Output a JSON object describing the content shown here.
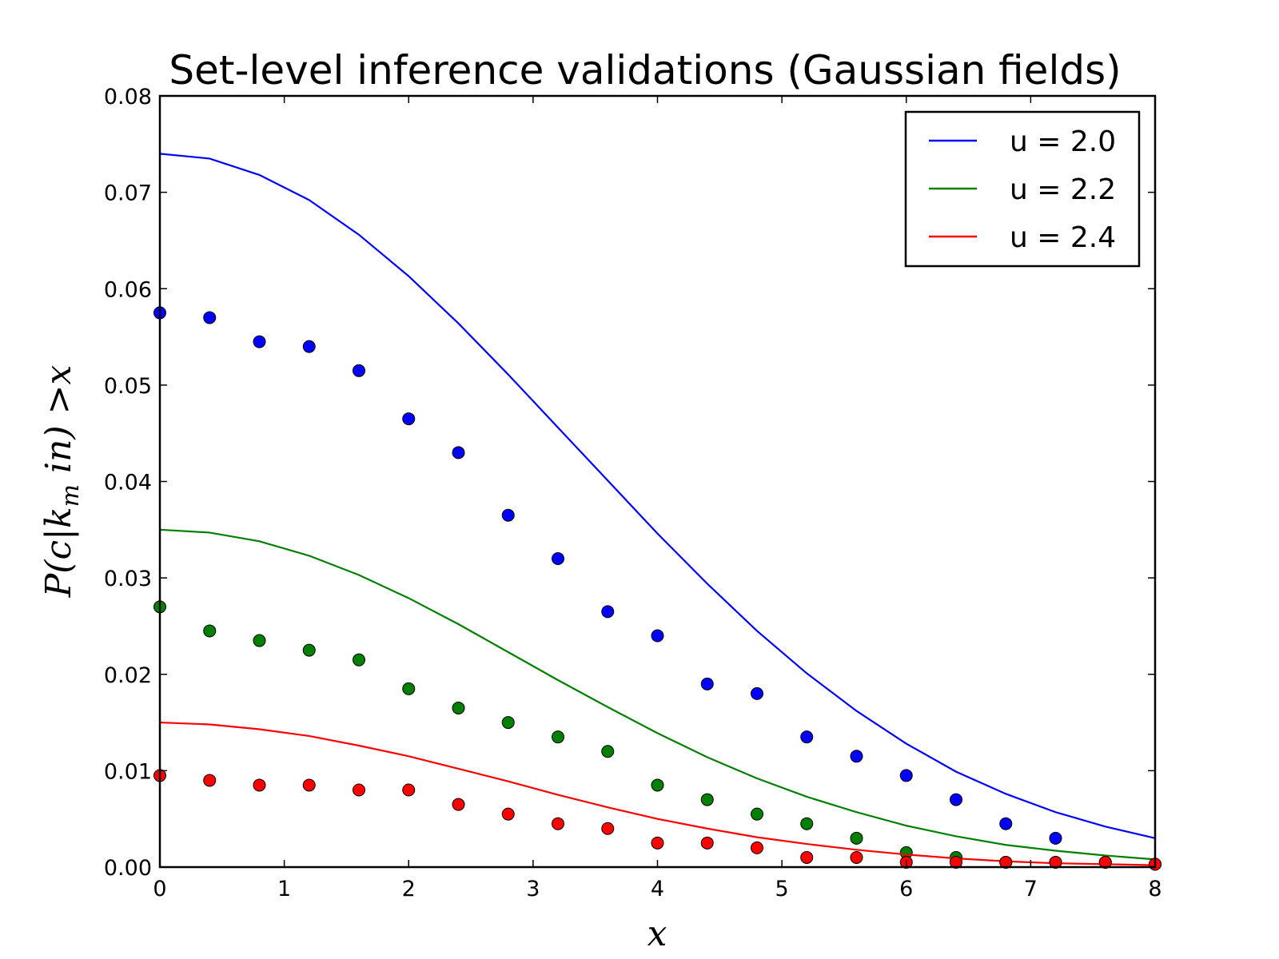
{
  "chart_data": {
    "type": "line",
    "title": "Set-level inference validations (Gaussian fields)",
    "xlabel": "x",
    "ylabel": "P(c|k_m in) >x",
    "xlim": [
      0,
      8
    ],
    "ylim": [
      0,
      0.08
    ],
    "xticks": [
      "0",
      "1",
      "2",
      "3",
      "4",
      "5",
      "6",
      "7",
      "8"
    ],
    "yticks": [
      "0.00",
      "0.01",
      "0.02",
      "0.03",
      "0.04",
      "0.05",
      "0.06",
      "0.07",
      "0.08"
    ],
    "grid": false,
    "legend_position": "top-right",
    "x_line": [
      0,
      0.4,
      0.8,
      1.2,
      1.6,
      2.0,
      2.4,
      2.8,
      3.2,
      3.6,
      4.0,
      4.4,
      4.8,
      5.2,
      5.6,
      6.0,
      6.4,
      6.8,
      7.2,
      7.6,
      8.0
    ],
    "x_points": [
      0,
      0.4,
      0.8,
      1.2,
      1.6,
      2.0,
      2.4,
      2.8,
      3.2,
      3.6,
      4.0,
      4.4,
      4.8,
      5.2,
      5.6,
      6.0,
      6.4,
      6.8,
      7.2,
      7.6,
      8.0
    ],
    "series": [
      {
        "name": "u = 2.0",
        "color": "#0000ff",
        "line": [
          0.074,
          0.0735,
          0.0718,
          0.0692,
          0.0656,
          0.0613,
          0.0564,
          0.0511,
          0.0456,
          0.0401,
          0.0346,
          0.0294,
          0.0245,
          0.0201,
          0.0162,
          0.0128,
          0.0099,
          0.0076,
          0.0057,
          0.0042,
          0.003
        ],
        "points": [
          0.0575,
          0.057,
          0.0545,
          0.054,
          0.0515,
          0.0465,
          0.043,
          0.0365,
          0.032,
          0.0265,
          0.024,
          0.019,
          0.018,
          0.0135,
          0.0115,
          0.0095,
          0.007,
          0.0045,
          0.003,
          null,
          null
        ]
      },
      {
        "name": "u = 2.2",
        "color": "#008000",
        "line": [
          0.035,
          0.0347,
          0.0338,
          0.0323,
          0.0303,
          0.0279,
          0.0252,
          0.0223,
          0.0194,
          0.0166,
          0.0139,
          0.0114,
          0.0092,
          0.0073,
          0.0057,
          0.0043,
          0.0032,
          0.0023,
          0.0017,
          0.0012,
          0.0008
        ],
        "points": [
          0.027,
          0.0245,
          0.0235,
          0.0225,
          0.0215,
          0.0185,
          0.0165,
          0.015,
          0.0135,
          0.012,
          0.0085,
          0.007,
          0.0055,
          0.0045,
          0.003,
          0.0015,
          0.001,
          0.0005,
          0.0005,
          0.0005,
          0.0003
        ]
      },
      {
        "name": "u = 2.4",
        "color": "#ff0000",
        "line": [
          0.015,
          0.0148,
          0.0143,
          0.0136,
          0.0126,
          0.0115,
          0.0102,
          0.0089,
          0.0075,
          0.0062,
          0.005,
          0.004,
          0.0031,
          0.0024,
          0.0018,
          0.0013,
          0.0009,
          0.0006,
          0.0004,
          0.0003,
          0.0002
        ],
        "points": [
          0.0095,
          0.009,
          0.0085,
          0.0085,
          0.008,
          0.008,
          0.0065,
          0.0055,
          0.0045,
          0.004,
          0.0025,
          0.0025,
          0.002,
          0.001,
          0.001,
          0.0005,
          0.0005,
          0.0005,
          0.0005,
          0.0005,
          0.0003
        ]
      }
    ]
  }
}
